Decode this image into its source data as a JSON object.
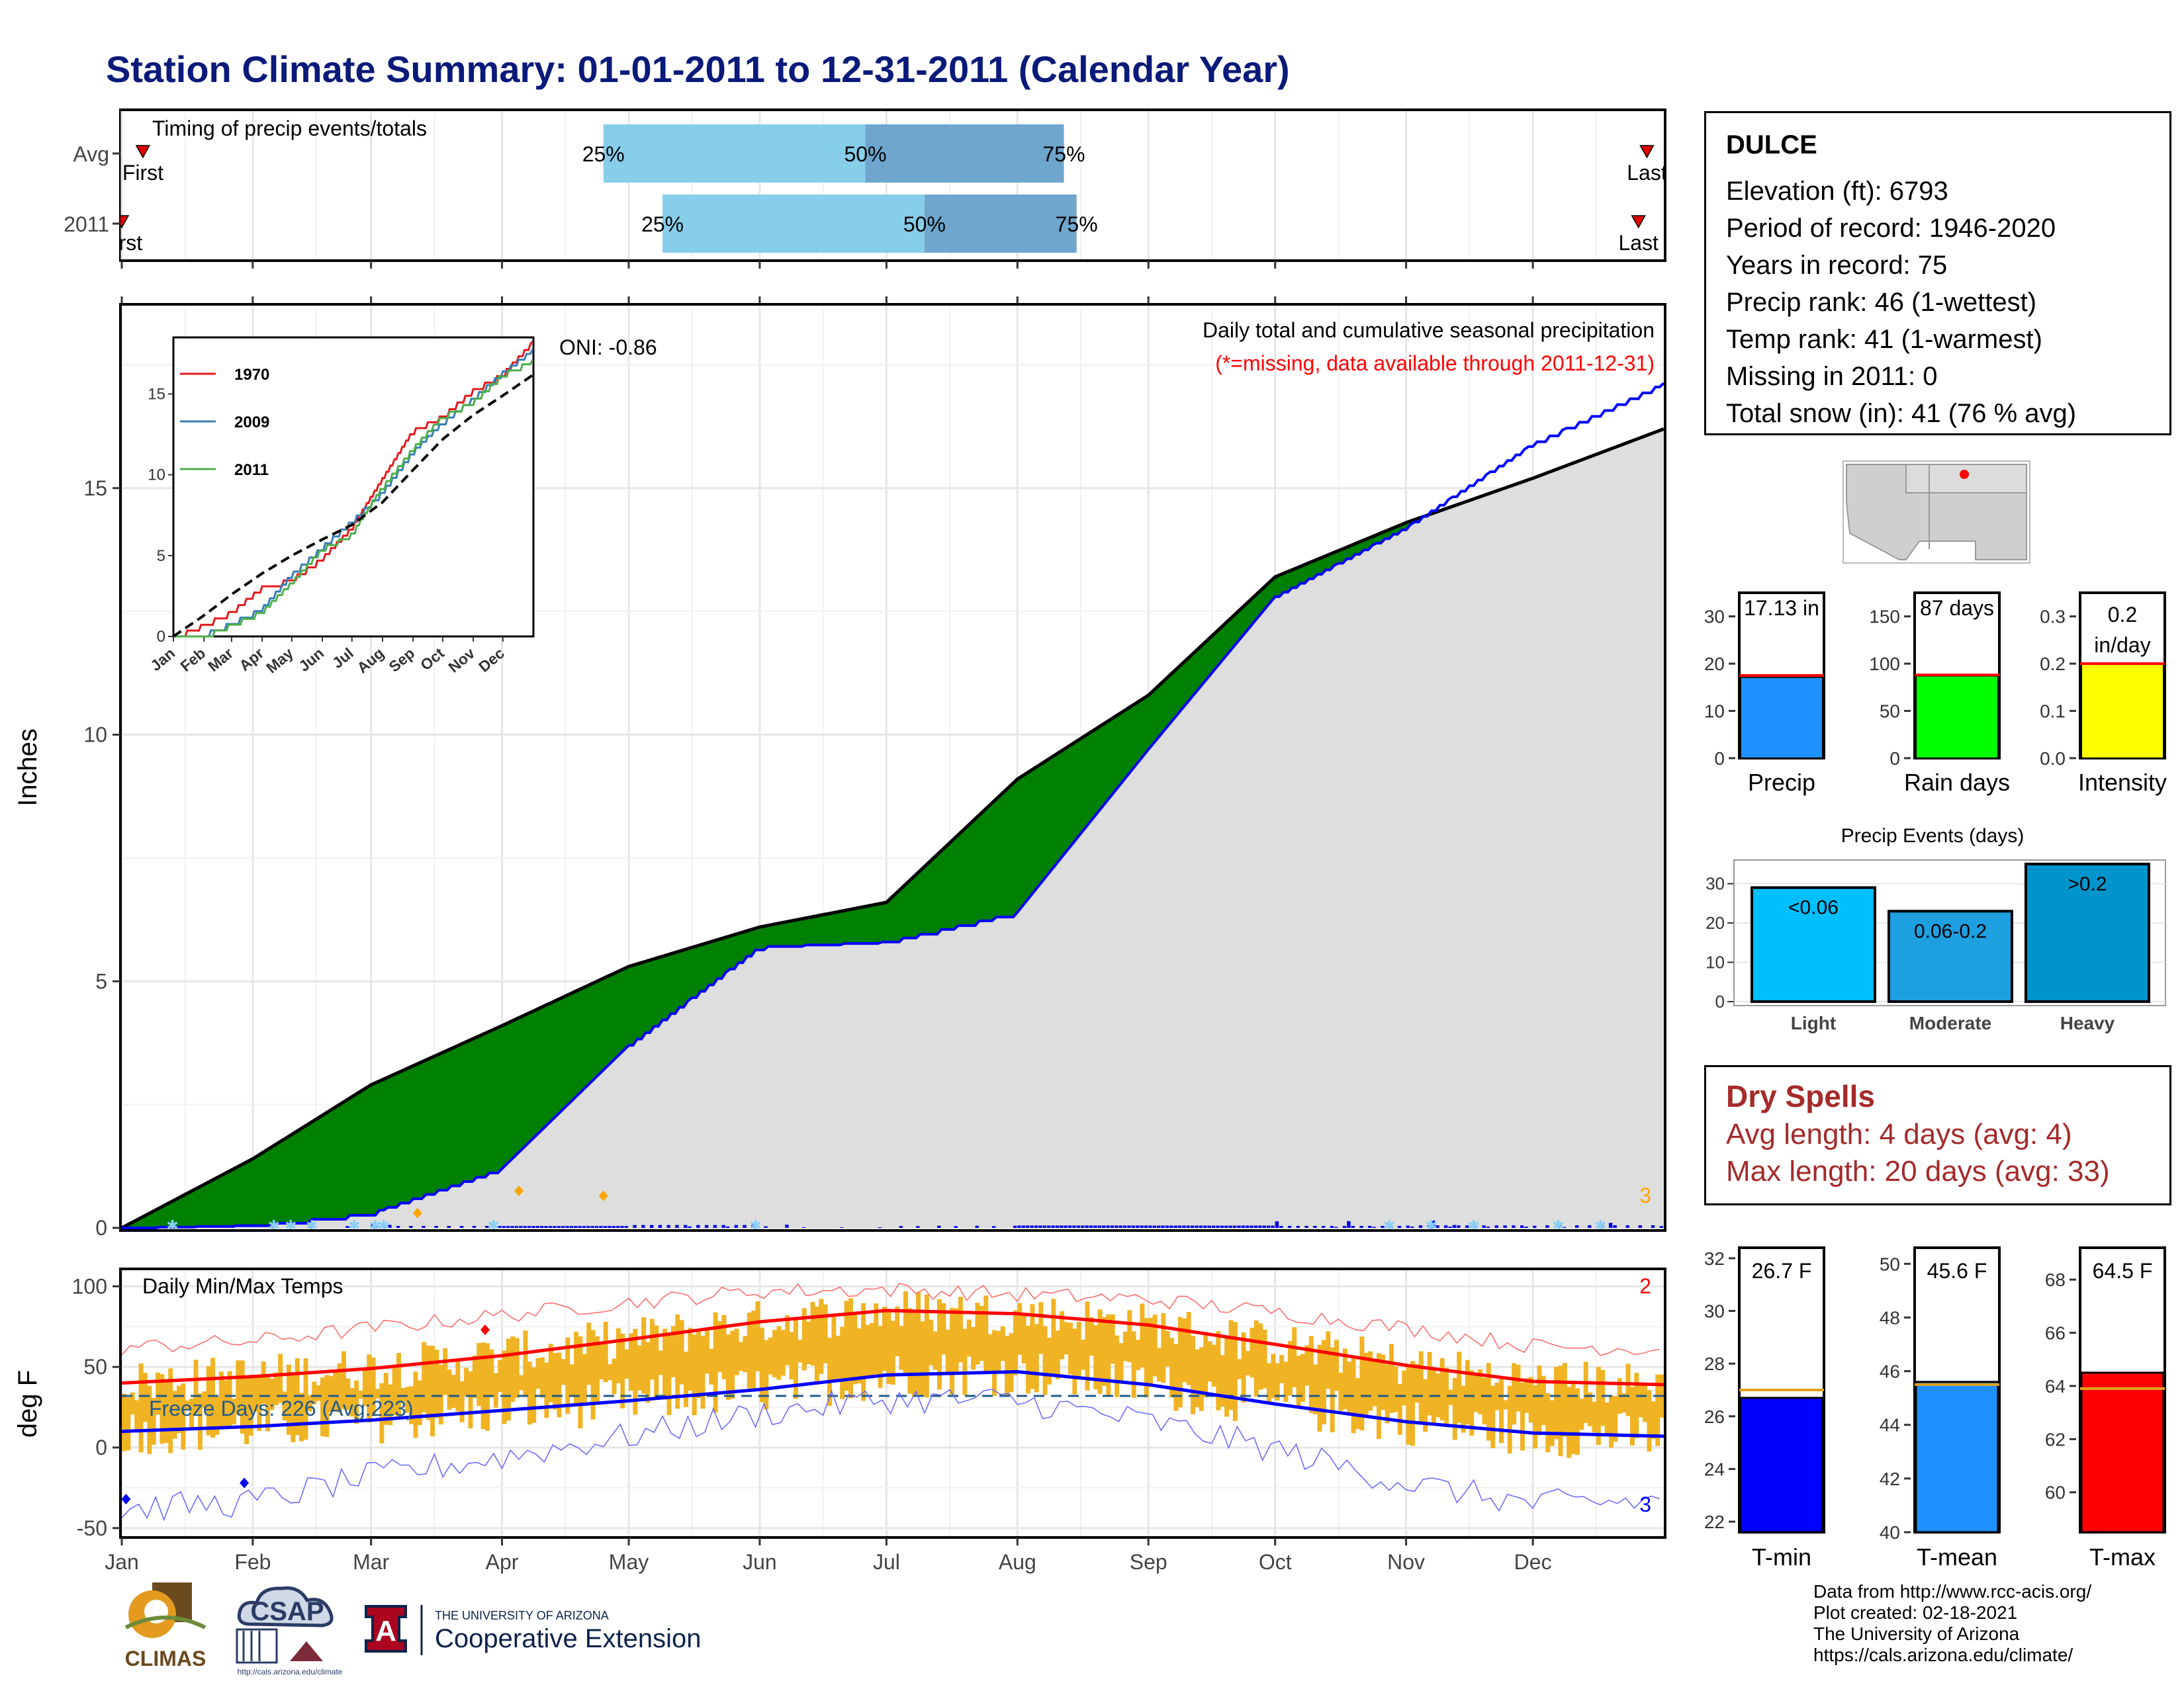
{
  "title": "Station Climate Summary: 01-01-2011 to 12-31-2011 (Calendar Year)",
  "timing_panel": {
    "label": "Timing of precip events/totals",
    "rows": [
      {
        "label": "Avg",
        "first": "First",
        "last": "Last",
        "q25": "25%",
        "q50": "50%",
        "q75": "75%",
        "first_doy": 5,
        "q25_doy": 114,
        "q50_doy": 176,
        "q75_doy": 223,
        "last_doy": 361
      },
      {
        "label": "2011",
        "first": "First",
        "last": "Last",
        "q25": "25%",
        "q50": "50%",
        "q75": "75%",
        "first_doy": 0,
        "q25_doy": 128,
        "q50_doy": 190,
        "q75_doy": 226,
        "last_doy": 359
      }
    ]
  },
  "precip_panel": {
    "ylabel": "Inches",
    "oni": "ONI: -0.86",
    "title": "Daily total and cumulative seasonal precipitation",
    "subtitle": "(*=missing, data available through 2011-12-31)",
    "corner_count": "3",
    "yticks": [
      "0",
      "5",
      "10",
      "15"
    ]
  },
  "inset": {
    "yticks": [
      "0",
      "5",
      "10",
      "15"
    ],
    "months": [
      "Jan",
      "Feb",
      "Mar",
      "Apr",
      "May",
      "Jun",
      "Jul",
      "Aug",
      "Sep",
      "Oct",
      "Nov",
      "Dec"
    ],
    "legend": [
      {
        "name": "1970",
        "color": "#e41a1c"
      },
      {
        "name": "2009",
        "color": "#377eb8"
      },
      {
        "name": "2011",
        "color": "#4daf4a"
      }
    ]
  },
  "temp_panel": {
    "ylabel": "deg F",
    "label": "Daily Min/Max Temps",
    "freeze": "Freeze Days: 226 (Avg:223)",
    "count_top": "2",
    "count_bottom": "3",
    "yticks": [
      "-50",
      "0",
      "50",
      "100"
    ]
  },
  "months": [
    "Jan",
    "Feb",
    "Mar",
    "Apr",
    "May",
    "Jun",
    "Jul",
    "Aug",
    "Sep",
    "Oct",
    "Nov",
    "Dec"
  ],
  "station": {
    "name": "DULCE",
    "lines": [
      "Elevation (ft): 6793",
      "Period of record: 1946-2020",
      "Years in record: 75",
      "Precip rank: 46 (1-wettest)",
      "Temp rank: 41 (1-warmest)",
      "Missing in 2011: 0",
      "Total snow (in): 41 (76 % avg)"
    ]
  },
  "summary_bars": [
    {
      "label": "Precip",
      "value_text": "17.13 in",
      "value": 17.13,
      "avg": 17.5,
      "max": 35,
      "ticks": [
        "0",
        "10",
        "20",
        "30"
      ],
      "tick_vals": [
        0,
        10,
        20,
        30
      ],
      "color": "#1e90ff"
    },
    {
      "label": "Rain days",
      "value_text": "87 days",
      "value": 87,
      "avg": 88,
      "max": 175,
      "ticks": [
        "0",
        "50",
        "100",
        "150"
      ],
      "tick_vals": [
        0,
        50,
        100,
        150
      ],
      "color": "#00ff00"
    },
    {
      "label": "Intensity",
      "value_text": "0.2 in/day",
      "value": 0.2,
      "avg": 0.2,
      "max": 0.35,
      "ticks": [
        "0.0",
        "0.1",
        "0.2",
        "0.3"
      ],
      "tick_vals": [
        0,
        0.1,
        0.2,
        0.3
      ],
      "color": "#ffff00"
    }
  ],
  "precip_events": {
    "title": "Precip Events (days)",
    "categories": [
      "Light",
      "Moderate",
      "Heavy"
    ],
    "bar_labels": [
      "<0.06",
      "0.06-0.2",
      ">0.2"
    ],
    "values": [
      29,
      23,
      35
    ],
    "colors": [
      "#00bfff",
      "#1ea0e0",
      "#0094cc"
    ],
    "yticks": [
      "0",
      "10",
      "20",
      "30"
    ]
  },
  "dry_spells": {
    "title": "Dry Spells",
    "avg_length": "Avg length: 4 days (avg: 4)",
    "max_length": "Max length: 20 days (avg: 33)"
  },
  "temp_bars": [
    {
      "label": "T-min",
      "value_text": "26.7 F",
      "value": 26.7,
      "avg": 27.0,
      "min": 21.6,
      "max": 32.4,
      "ticks": [
        "22",
        "24",
        "26",
        "28",
        "30",
        "32"
      ],
      "tick_vals": [
        22,
        24,
        26,
        28,
        30,
        32
      ],
      "color": "#0000ff"
    },
    {
      "label": "T-mean",
      "value_text": "45.6 F",
      "value": 45.6,
      "avg": 45.5,
      "min": 40,
      "max": 50.6,
      "ticks": [
        "40",
        "42",
        "44",
        "46",
        "48",
        "50"
      ],
      "tick_vals": [
        40,
        42,
        44,
        46,
        48,
        50
      ],
      "color": "#1e90ff"
    },
    {
      "label": "T-max",
      "value_text": "64.5 F",
      "value": 64.5,
      "avg": 63.9,
      "min": 58.5,
      "max": 69.2,
      "ticks": [
        "60",
        "62",
        "64",
        "66",
        "68"
      ],
      "tick_vals": [
        60,
        62,
        64,
        66,
        68
      ],
      "color": "#ff0000"
    }
  ],
  "credits": [
    "Data from http://www.rcc-acis.org/",
    "Plot created: 02-18-2021",
    "The University of Arizona",
    "https://cals.arizona.edu/climate/"
  ],
  "logos": {
    "climas": "CLIMAS",
    "csap": "CSAP",
    "csap_url": "http://cals.arizona.edu/climate",
    "ua_small": "THE UNIVERSITY OF ARIZONA",
    "ua_big": "Cooperative Extension"
  },
  "chart_data": [
    {
      "type": "bar",
      "title": "Timing of precip events/totals",
      "categories": [
        "Avg",
        "2011"
      ],
      "series": [
        {
          "name": "25%",
          "values": [
            114,
            128
          ]
        },
        {
          "name": "50%",
          "values": [
            176,
            190
          ]
        },
        {
          "name": "75%",
          "values": [
            223,
            226
          ]
        }
      ]
    },
    {
      "type": "area",
      "title": "Daily total and cumulative seasonal precipitation",
      "ylabel": "Inches",
      "ylim": [
        0,
        18.7
      ],
      "x": [
        "Jan",
        "Feb",
        "Mar",
        "Apr",
        "May",
        "Jun",
        "Jul",
        "Aug",
        "Sep",
        "Oct",
        "Nov",
        "Dec",
        "Dec-31"
      ],
      "series": [
        {
          "name": "Avg cumulative",
          "values": [
            0,
            1.4,
            2.9,
            4.1,
            5.3,
            6.1,
            6.6,
            9.1,
            10.8,
            13.2,
            14.3,
            15.2,
            16.2
          ]
        },
        {
          "name": "2011 cumulative",
          "values": [
            0,
            0.05,
            0.3,
            1.2,
            3.7,
            5.7,
            5.8,
            6.4,
            9.7,
            12.8,
            14.2,
            15.9,
            17.13
          ]
        }
      ]
    },
    {
      "type": "line",
      "ylim": [
        0,
        18.5
      ],
      "x": [
        "Jan",
        "Feb",
        "Mar",
        "Apr",
        "May",
        "Jun",
        "Jul",
        "Aug",
        "Sep",
        "Oct",
        "Nov",
        "Dec",
        "Dec-31"
      ],
      "series": [
        {
          "name": "1970",
          "values": [
            0,
            0.8,
            1.6,
            3.1,
            3.6,
            4.9,
            6.8,
            9.8,
            12.8,
            13.7,
            15.3,
            16.3,
            18.3
          ]
        },
        {
          "name": "2009",
          "values": [
            0,
            0.2,
            0.9,
            1.8,
            3.9,
            5.6,
            7.2,
            9.0,
            11.5,
            13.3,
            14.8,
            16.4,
            17.8
          ]
        },
        {
          "name": "2011",
          "values": [
            0,
            0.1,
            0.8,
            1.6,
            3.4,
            5.5,
            6.4,
            9.3,
            11.7,
            13.7,
            14.6,
            16.3,
            17.13
          ]
        },
        {
          "name": "Avg",
          "values": [
            0,
            1.3,
            2.6,
            3.9,
            5.0,
            6.0,
            6.9,
            8.3,
            10.3,
            12.2,
            13.7,
            14.9,
            16.2
          ]
        }
      ]
    },
    {
      "type": "line",
      "title": "Daily Min/Max Temps",
      "ylabel": "deg F",
      "ylim": [
        -55,
        110
      ],
      "x": [
        "Jan",
        "Feb",
        "Mar",
        "Apr",
        "May",
        "Jun",
        "Jul",
        "Aug",
        "Sep",
        "Oct",
        "Nov",
        "Dec",
        "Dec-31"
      ],
      "series": [
        {
          "name": "Avg max",
          "values": [
            40,
            44,
            49,
            57,
            67,
            78,
            85,
            83,
            76,
            64,
            51,
            41,
            39
          ]
        },
        {
          "name": "Avg min",
          "values": [
            10,
            13,
            17,
            23,
            29,
            36,
            45,
            47,
            39,
            27,
            16,
            9,
            7
          ]
        },
        {
          "name": "Record max",
          "values": [
            62,
            66,
            74,
            82,
            90,
            97,
            98,
            95,
            92,
            84,
            74,
            63,
            61
          ]
        },
        {
          "name": "Record min",
          "values": [
            -38,
            -34,
            -18,
            -6,
            7,
            21,
            30,
            29,
            16,
            -1,
            -22,
            -35,
            -33
          ]
        }
      ]
    },
    {
      "type": "bar",
      "categories": [
        "Precip",
        "Rain days",
        "Intensity"
      ],
      "values": [
        17.13,
        87,
        0.2
      ]
    },
    {
      "type": "bar",
      "title": "Precip Events (days)",
      "categories": [
        "Light",
        "Moderate",
        "Heavy"
      ],
      "values": [
        29,
        23,
        35
      ]
    },
    {
      "type": "bar",
      "categories": [
        "T-min",
        "T-mean",
        "T-max"
      ],
      "values": [
        26.7,
        45.6,
        64.5
      ]
    }
  ]
}
